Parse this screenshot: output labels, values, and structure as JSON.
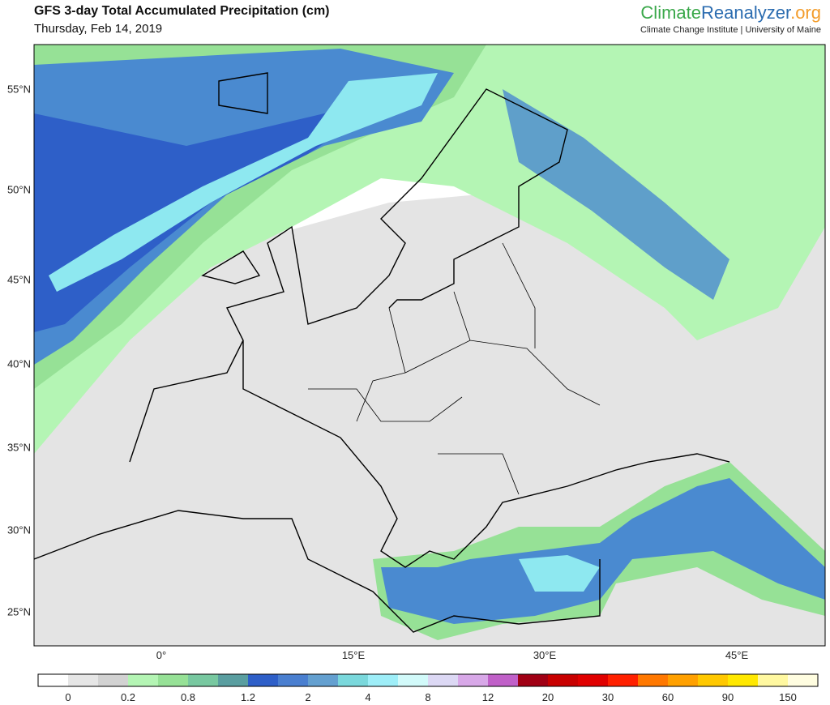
{
  "header": {
    "title": "GFS 3-day Total Accumulated Precipitation (cm)",
    "date": "Thursday, Feb 14, 2019",
    "logo": {
      "part1": "Climate",
      "part2": "Reanalyzer",
      "part3": ".org"
    },
    "subtitle": "Climate Change Institute | University of Maine"
  },
  "map": {
    "lat_labels": [
      "55°N",
      "50°N",
      "45°N",
      "40°N",
      "35°N",
      "30°N",
      "25°N"
    ],
    "lon_labels": [
      "0°",
      "15°E",
      "30°E",
      "45°E"
    ]
  },
  "colorbar": {
    "colors": [
      "#ffffff",
      "#e6e6e6",
      "#d2d2d2",
      "#b4f5b4",
      "#96e196",
      "#78c8a0",
      "#5a9ea0",
      "#2e5fc8",
      "#4a7fd0",
      "#64a0d0",
      "#7ad8dc",
      "#9eeef8",
      "#d2fafa",
      "#dcd8f4",
      "#d8a8e8",
      "#c060c8",
      "#a00014",
      "#c80000",
      "#e00000",
      "#ff2000",
      "#ff7800",
      "#ffa000",
      "#ffc800",
      "#ffe800",
      "#fff8a0",
      "#fffde0"
    ],
    "ticks": [
      0,
      0.2,
      0.8,
      1.2,
      2,
      4,
      8,
      12,
      20,
      30,
      60,
      90,
      150
    ]
  }
}
